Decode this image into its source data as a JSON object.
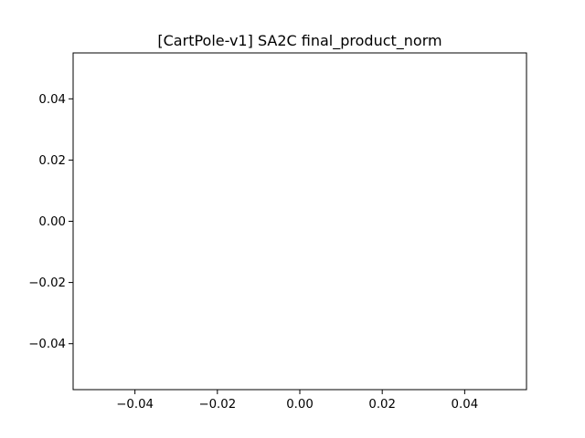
{
  "chart_data": {
    "type": "line",
    "title": "[CartPole-v1] SA2C final_product_norm",
    "xlabel": "",
    "ylabel": "",
    "xlim": [
      -0.055,
      0.055
    ],
    "ylim": [
      -0.055,
      0.055
    ],
    "x_ticks": [
      -0.04,
      -0.02,
      0.0,
      0.02,
      0.04
    ],
    "x_tick_labels": [
      "−0.04",
      "−0.02",
      "0.00",
      "0.02",
      "0.04"
    ],
    "y_ticks": [
      -0.04,
      -0.02,
      0.0,
      0.02,
      0.04
    ],
    "y_tick_labels": [
      "−0.04",
      "−0.02",
      "0.00",
      "0.02",
      "0.04"
    ],
    "series": [],
    "grid": false,
    "legend": "none",
    "colors": {
      "axes": "#000000",
      "background": "#ffffff"
    }
  }
}
